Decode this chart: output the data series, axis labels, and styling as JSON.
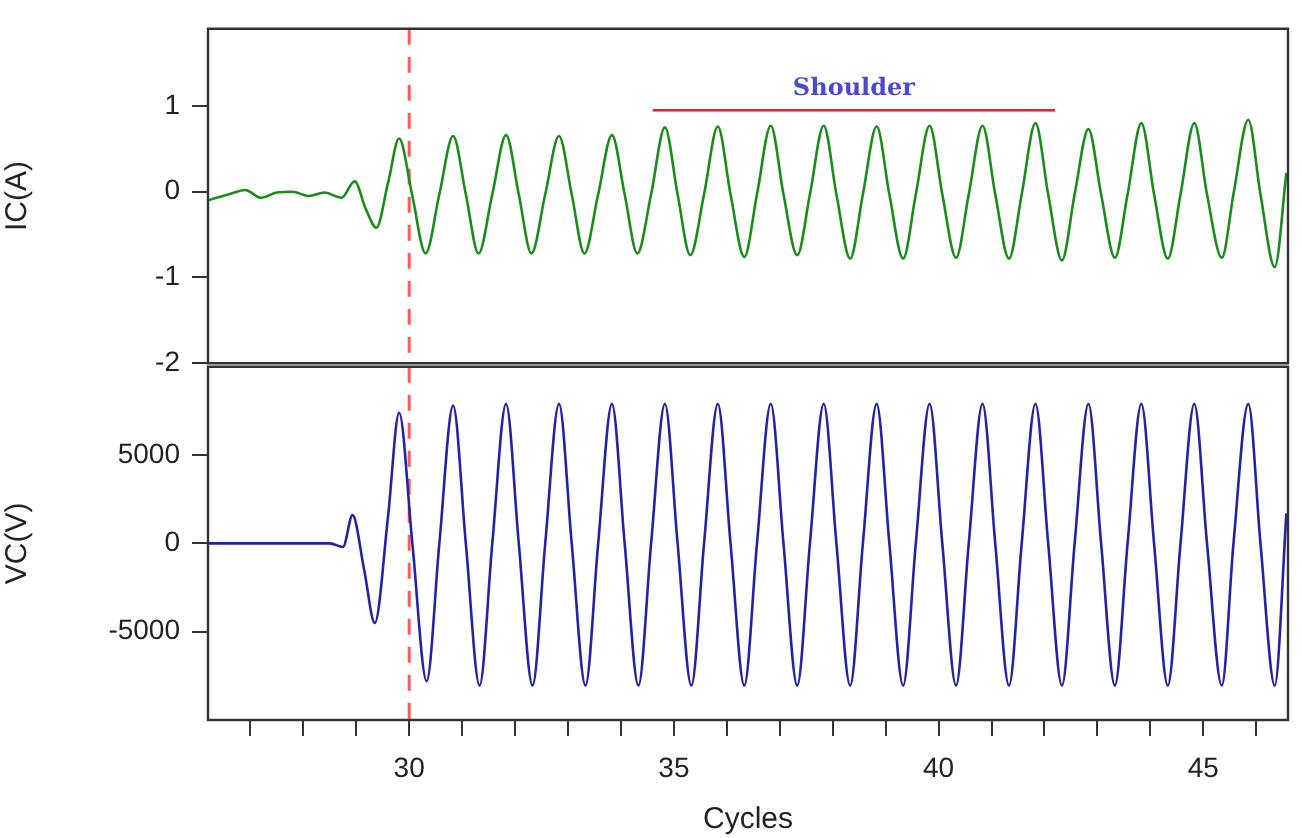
{
  "chart_data": [
    {
      "type": "line",
      "ylabel": "IC(A)",
      "xlim": [
        26.2,
        46.6
      ],
      "ylim": [
        -2,
        1.9
      ],
      "yticks": [
        -2,
        -1,
        0,
        1
      ],
      "tick_labels": "y",
      "grid": false,
      "legend": false,
      "marker": "none",
      "line_style": "solid",
      "ref_lines": [
        {
          "axis": "x",
          "value": 30,
          "color": "#ff5a5a",
          "line_style": "dashed"
        }
      ],
      "annotations": [
        {
          "text": "Shoulder",
          "x": 38.4,
          "y": 0.95
        }
      ],
      "series": [
        {
          "color": "#1a8c1a",
          "x": [
            26.2,
            26.6,
            26.9,
            27.2,
            27.5,
            27.8,
            28.1,
            28.4,
            28.72,
            28.97,
            29.18,
            29.38,
            29.6,
            29.81,
            30.06,
            30.31,
            30.57,
            30.83,
            31.07,
            31.31,
            31.57,
            31.83,
            32.07,
            32.31,
            32.57,
            32.83,
            33.07,
            33.31,
            33.57,
            33.83,
            34.07,
            34.31,
            34.57,
            34.83,
            35.07,
            35.31,
            35.57,
            35.83,
            36.07,
            36.33,
            36.57,
            36.83,
            37.07,
            37.33,
            37.57,
            37.83,
            38.07,
            38.33,
            38.57,
            38.83,
            39.07,
            39.33,
            39.57,
            39.83,
            40.07,
            40.33,
            40.57,
            40.83,
            41.07,
            41.33,
            41.57,
            41.83,
            42.07,
            42.33,
            42.57,
            42.83,
            43.07,
            43.33,
            43.57,
            43.83,
            44.07,
            44.33,
            44.57,
            44.83,
            45.07,
            45.35,
            45.57,
            45.85,
            46.08,
            46.35,
            46.57
          ],
          "values": [
            -0.1,
            -0.03,
            0.02,
            -0.07,
            -0.01,
            0.0,
            -0.05,
            -0.01,
            -0.07,
            0.12,
            -0.2,
            -0.42,
            0.1,
            0.62,
            -0.05,
            -0.72,
            -0.03,
            0.65,
            -0.03,
            -0.72,
            -0.03,
            0.66,
            -0.03,
            -0.72,
            -0.03,
            0.65,
            -0.03,
            -0.72,
            -0.03,
            0.66,
            -0.03,
            -0.72,
            -0.03,
            0.75,
            -0.03,
            -0.74,
            -0.03,
            0.76,
            -0.03,
            -0.76,
            -0.03,
            0.77,
            -0.03,
            -0.74,
            -0.03,
            0.77,
            -0.03,
            -0.78,
            -0.03,
            0.76,
            -0.03,
            -0.78,
            -0.03,
            0.77,
            -0.03,
            -0.77,
            -0.03,
            0.77,
            -0.03,
            -0.78,
            -0.03,
            0.8,
            -0.03,
            -0.8,
            -0.03,
            0.73,
            -0.03,
            -0.77,
            -0.03,
            0.8,
            -0.03,
            -0.78,
            -0.03,
            0.8,
            -0.03,
            -0.77,
            -0.03,
            0.84,
            -0.03,
            -0.88,
            0.22
          ]
        },
        {
          "type": "line",
          "color": "#e8202a",
          "x": [
            34.6,
            42.2
          ],
          "values": [
            0.95,
            0.95
          ]
        }
      ]
    },
    {
      "type": "line",
      "ylabel": "VC(V)",
      "xlabel": "Cycles",
      "xlim": [
        26.2,
        46.6
      ],
      "ylim": [
        -10000,
        10000
      ],
      "yticks": [
        -5000,
        0,
        5000
      ],
      "xticks": [
        {
          "value": 27,
          "label": null
        },
        {
          "value": 28,
          "label": null
        },
        {
          "value": 29,
          "label": null
        },
        30,
        {
          "value": 31,
          "label": null
        },
        {
          "value": 32,
          "label": null
        },
        {
          "value": 33,
          "label": null
        },
        {
          "value": 34,
          "label": null
        },
        35,
        {
          "value": 36,
          "label": null
        },
        {
          "value": 37,
          "label": null
        },
        {
          "value": 38,
          "label": null
        },
        {
          "value": 39,
          "label": null
        },
        40,
        {
          "value": 41,
          "label": null
        },
        {
          "value": 42,
          "label": null
        },
        {
          "value": 43,
          "label": null
        },
        {
          "value": 44,
          "label": null
        },
        45,
        {
          "value": 46,
          "label": null
        }
      ],
      "grid": false,
      "legend": false,
      "marker": "none",
      "line_style": "solid",
      "ref_lines": [
        {
          "axis": "x",
          "value": 30,
          "color": "#ff5a5a",
          "line_style": "dashed"
        }
      ],
      "series": [
        {
          "color": "#2323a8",
          "x": [
            26.2,
            28.5,
            28.75,
            28.93,
            29.15,
            29.35,
            29.6,
            29.81,
            30.06,
            30.33,
            30.57,
            30.83,
            31.07,
            31.33,
            31.57,
            31.83,
            32.07,
            32.33,
            32.57,
            32.83,
            33.07,
            33.33,
            33.57,
            33.83,
            34.07,
            34.33,
            34.57,
            34.83,
            35.07,
            35.33,
            35.57,
            35.83,
            36.07,
            36.33,
            36.57,
            36.83,
            37.07,
            37.33,
            37.57,
            37.83,
            38.07,
            38.33,
            38.57,
            38.83,
            39.07,
            39.33,
            39.57,
            39.83,
            40.07,
            40.33,
            40.57,
            40.83,
            41.07,
            41.33,
            41.57,
            41.83,
            42.07,
            42.33,
            42.57,
            42.83,
            43.07,
            43.33,
            43.57,
            43.83,
            44.07,
            44.33,
            44.57,
            44.83,
            45.07,
            45.35,
            45.57,
            45.85,
            46.08,
            46.35,
            46.57
          ],
          "values": [
            0,
            0,
            -200,
            1600,
            -1500,
            -4500,
            1500,
            7400,
            0,
            -7800,
            0,
            7800,
            0,
            -8050,
            0,
            7900,
            0,
            -8050,
            0,
            7900,
            0,
            -8050,
            0,
            7900,
            0,
            -8050,
            0,
            7900,
            0,
            -8050,
            0,
            7900,
            0,
            -8050,
            0,
            7900,
            0,
            -8050,
            0,
            7900,
            0,
            -8050,
            0,
            7900,
            0,
            -8050,
            0,
            7900,
            0,
            -8050,
            0,
            7900,
            0,
            -8050,
            0,
            7900,
            0,
            -8050,
            0,
            7900,
            0,
            -8050,
            0,
            7900,
            0,
            -8050,
            0,
            7900,
            0,
            -8050,
            0,
            7900,
            0,
            -8050,
            1700
          ]
        }
      ]
    }
  ]
}
